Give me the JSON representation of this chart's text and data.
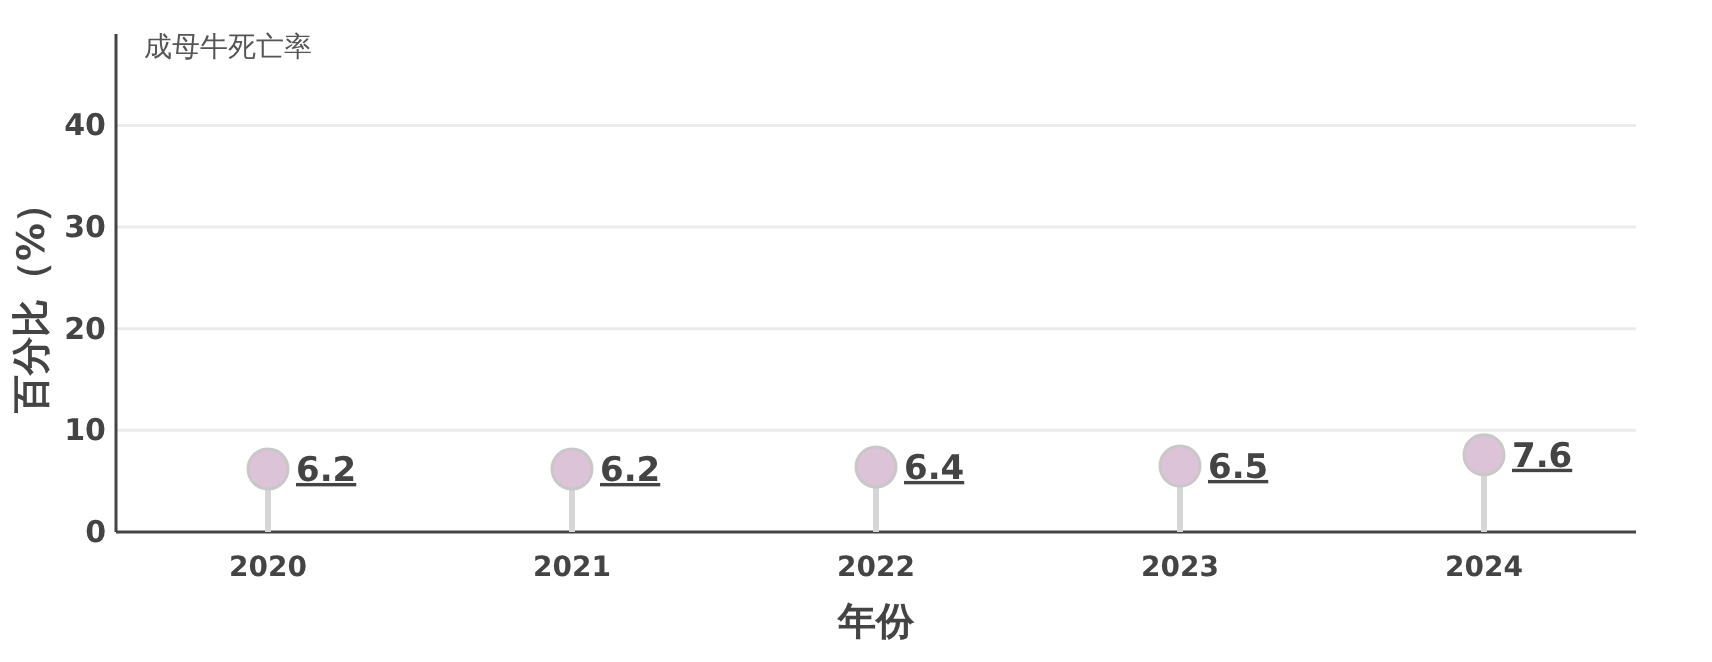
{
  "chart_data": {
    "type": "lollipop",
    "title": "成母牛死亡率",
    "xlabel": "年份",
    "ylabel": "百分比（%）",
    "categories": [
      "2020",
      "2021",
      "2022",
      "2023",
      "2024"
    ],
    "values": [
      6.2,
      6.2,
      6.4,
      6.5,
      7.6
    ],
    "color": "#dcc3d8",
    "ylim": [
      0,
      49
    ],
    "yticks": [
      0,
      10,
      20,
      30,
      40
    ],
    "grid": "y",
    "data_labels": true,
    "marker": "circle"
  }
}
